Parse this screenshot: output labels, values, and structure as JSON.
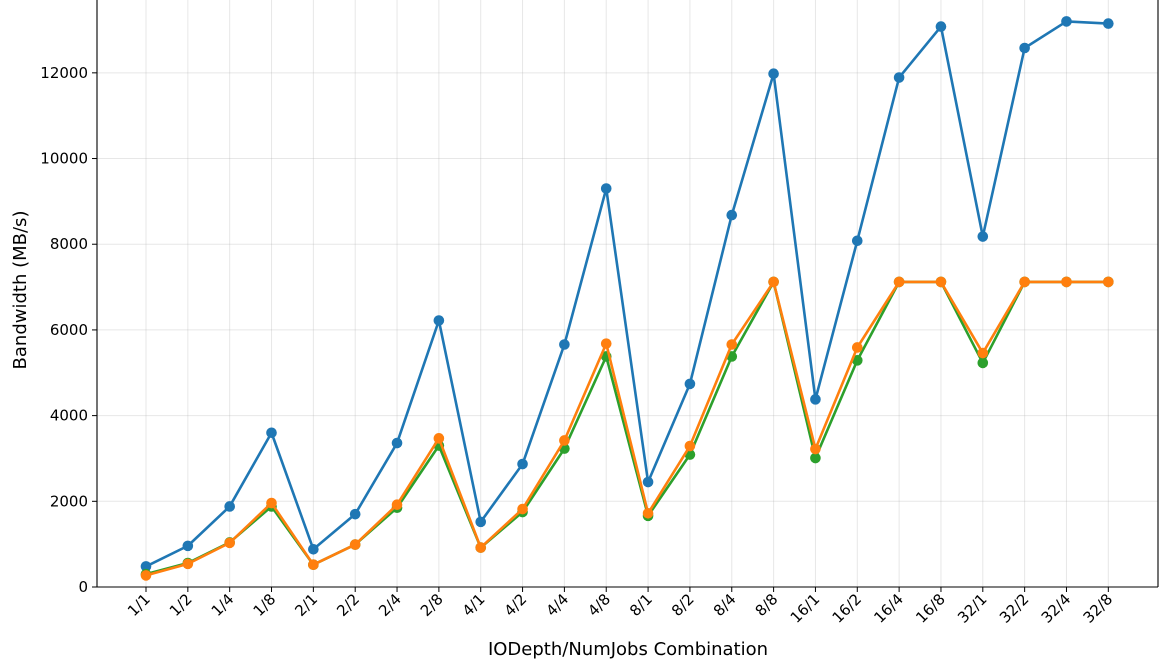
{
  "chart_data": {
    "type": "line",
    "xlabel": "IODepth/NumJobs Combination",
    "ylabel": "Bandwidth (MB/s)",
    "categories": [
      "1/1",
      "1/2",
      "1/4",
      "1/8",
      "2/1",
      "2/2",
      "2/4",
      "2/8",
      "4/1",
      "4/2",
      "4/4",
      "4/8",
      "8/1",
      "8/2",
      "8/4",
      "8/8",
      "16/1",
      "16/2",
      "16/4",
      "16/8",
      "32/1",
      "32/2",
      "32/4",
      "32/8"
    ],
    "ylim": [
      0,
      13700
    ],
    "yticks": [
      0,
      2000,
      4000,
      6000,
      8000,
      10000,
      12000
    ],
    "grid": true,
    "legend": "none",
    "series": [
      {
        "color": "#1f77b4",
        "values": [
          480,
          960,
          1880,
          3600,
          880,
          1700,
          3360,
          6220,
          1520,
          2870,
          5660,
          9300,
          2450,
          4740,
          8680,
          11980,
          4380,
          8080,
          11890,
          13080,
          8180,
          12580,
          13200,
          13150
        ]
      },
      {
        "color": "#2ca02c",
        "values": [
          300,
          560,
          1040,
          1880,
          520,
          990,
          1850,
          3300,
          920,
          1750,
          3230,
          5380,
          1660,
          3090,
          5380,
          7120,
          3010,
          5290,
          7120,
          7120,
          5230,
          7120,
          7120,
          7120
        ]
      },
      {
        "color": "#ff7f0e",
        "values": [
          270,
          540,
          1030,
          1960,
          520,
          990,
          1920,
          3470,
          920,
          1820,
          3420,
          5680,
          1720,
          3290,
          5660,
          7120,
          3220,
          5590,
          7120,
          7120,
          5460,
          7120,
          7120,
          7120
        ]
      }
    ]
  }
}
